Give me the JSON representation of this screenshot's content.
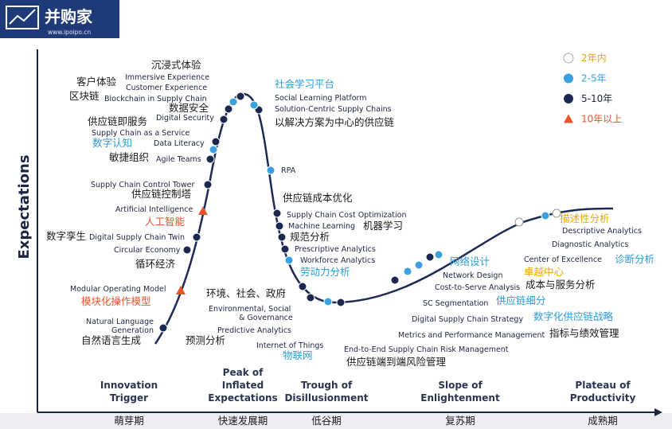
{
  "logo": {
    "name": "并购家",
    "url": "www.ipoipo.cn"
  },
  "y_axis_label": "Expectations",
  "legend": [
    "2年内",
    "2-5年",
    "5-10年",
    "10年以上"
  ],
  "phases": [
    {
      "name": [
        "Innovation",
        "Trigger"
      ],
      "stage": "萌芽期"
    },
    {
      "name": [
        "Peak of",
        "Inflated",
        "Expectations"
      ],
      "stage": "快速发展期"
    },
    {
      "name": [
        "Trough of",
        "Disillusionment"
      ],
      "stage": "低谷期"
    },
    {
      "name": [
        "Slope of",
        "Enlightenment"
      ],
      "stage": "复苏期"
    },
    {
      "name": [
        "Plateau of",
        "Productivity"
      ],
      "stage": "成熟期"
    }
  ],
  "labels": [
    "沉浸式体验",
    "Immersive Experience",
    "客户体验",
    "Customer Experience",
    "区块链",
    "Blockchain in Supply Chain",
    "数据安全",
    "Digital Security",
    "供应链即服务",
    "Supply Chain as a Service",
    "数字认知",
    "Data Literacy",
    "敏捷组织",
    "Agile Teams",
    "Supply Chain Control Tower",
    "供应链控制塔",
    "Artificial Intelligence",
    "人工智能",
    "数字孪生",
    "Digital Supply Chain Twin",
    "Circular Economy",
    "循环经济",
    "Modular Operating Model",
    "模块化操作模型",
    "Natural Language",
    "Generation",
    "自然语言生成",
    "社会学习平台",
    "Social Learning Platform",
    "Solution-Centric Supply Chains",
    "以解决方案为中心的供应链",
    "RPA",
    "供应链成本优化",
    "Supply Chain Cost Optimization",
    "Machine Learning",
    "机器学习",
    "规范分析",
    "Prescriptive Analytics",
    "Workforce Analytics",
    "劳动力分析",
    "环境、社会、政府",
    "Environmental, Social",
    "& Governance",
    "Predictive Analytics",
    "预测分析",
    "Internet of Things",
    "物联网",
    "End-to-End Supply Chain Risk Management",
    "供应链端到端风险管理",
    "Metrics and Performance Management",
    "Digital Supply Chain Strategy",
    "SC Segmentation",
    "Cost-to-Serve Analysis",
    "Network Design",
    "网络设计",
    "供应链细分",
    "数字化供应链战略",
    "指标与绩效管理",
    "成本与服务分析",
    "Center of Excellence",
    "卓越中心",
    "诊断分析",
    "描述性分析",
    "Descriptive Analytics",
    "Diagnostic Analytics"
  ]
}
